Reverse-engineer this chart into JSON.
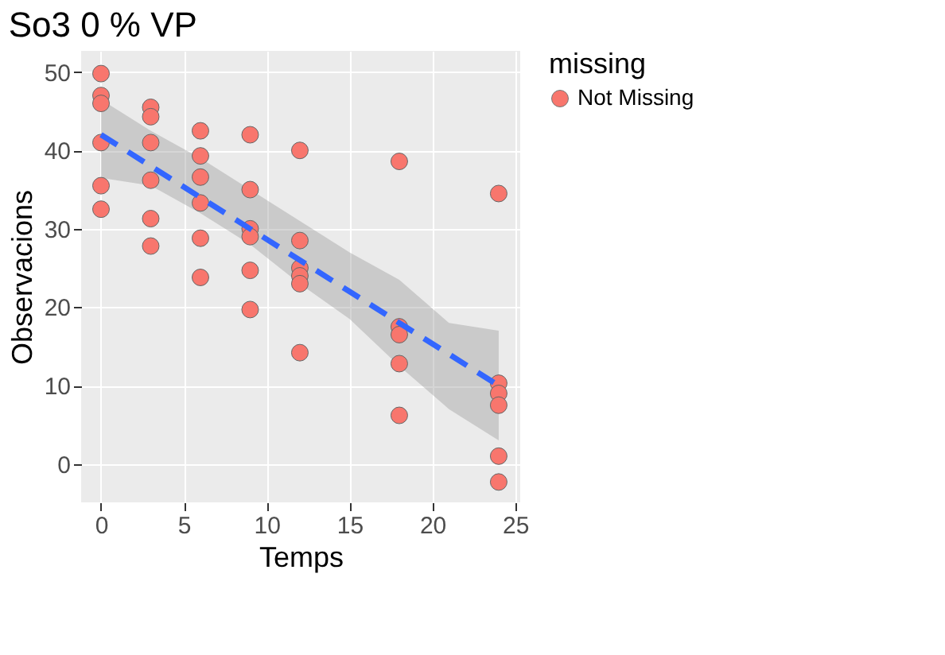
{
  "chart_data": {
    "type": "scatter",
    "title": "So3 0 % VP",
    "xlabel": "Temps",
    "ylabel": "Observacions",
    "legend_title": "missing",
    "legend": "right",
    "grid": true,
    "marker": "circle",
    "xlim": [
      -1.2,
      25.3
    ],
    "ylim": [
      -4.9,
      52.7
    ],
    "xticks": [
      0,
      5,
      10,
      15,
      20,
      25
    ],
    "yticks": [
      0,
      10,
      20,
      30,
      40,
      50
    ],
    "series": [
      {
        "name": "Not Missing",
        "color": "#f8766d",
        "x": [
          0,
          0,
          0,
          0,
          0,
          0,
          3,
          3,
          3,
          3,
          3,
          3,
          6,
          6,
          6,
          6,
          6,
          6,
          9,
          9,
          9,
          9,
          9,
          9,
          12,
          12,
          12,
          12,
          12,
          12,
          18,
          18,
          18,
          18,
          18,
          24,
          24,
          24,
          24,
          24,
          24
        ],
        "values": [
          49.8,
          47,
          46,
          41,
          35.5,
          32.5,
          45.5,
          44.3,
          41,
          36.2,
          31.3,
          27.8,
          42.5,
          39.3,
          36.6,
          33.3,
          28.8,
          23.8,
          42,
          35,
          30,
          29,
          24.7,
          19.7,
          40,
          28.5,
          25,
          24,
          23,
          14.2,
          38.6,
          17.5,
          16.5,
          12.8,
          6.2,
          34.5,
          10.3,
          9,
          7.5,
          1,
          -2.3
        ]
      },
      {
        "type": "line",
        "color": "#3366ff",
        "line_style": "dashed",
        "marker": "none",
        "x": [
          0,
          3,
          6,
          9,
          12,
          15,
          18,
          21,
          24
        ],
        "values": [
          42,
          38,
          34,
          30,
          26,
          22,
          18,
          14,
          10
        ],
        "lower": [
          36.5,
          35.5,
          32,
          28,
          23,
          18.5,
          12.5,
          7,
          3
        ],
        "upper": [
          46.5,
          42.5,
          39,
          35,
          31,
          27,
          23.5,
          18,
          17
        ]
      }
    ]
  }
}
